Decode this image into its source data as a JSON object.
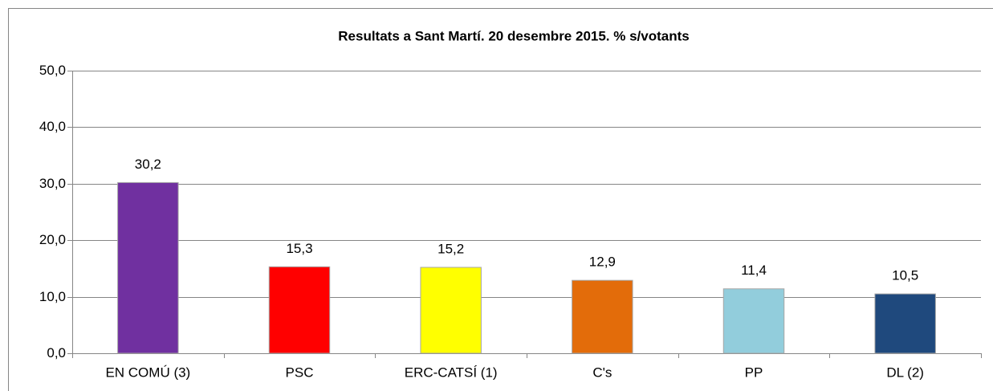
{
  "chart_data": {
    "type": "bar",
    "title": "Resultats a Sant Martí. 20 desembre 2015. % s/votants",
    "categories": [
      "EN COMÚ (3)",
      "PSC",
      "ERC-CATSÍ (1)",
      "C's",
      "PP",
      "DL (2)"
    ],
    "values": [
      30.2,
      15.3,
      15.2,
      12.9,
      11.4,
      10.5
    ],
    "value_labels": [
      "30,2",
      "15,3",
      "15,2",
      "12,9",
      "11,4",
      "10,5"
    ],
    "colors": [
      "#7030a0",
      "#ff0000",
      "#ffff00",
      "#e36c0a",
      "#92cddc",
      "#1f497d"
    ],
    "ylim": [
      0,
      50
    ],
    "yticks": [
      {
        "value": 0,
        "label": "0,0"
      },
      {
        "value": 10,
        "label": "10,0"
      },
      {
        "value": 20,
        "label": "20,0"
      },
      {
        "value": 30,
        "label": "30,0"
      },
      {
        "value": 40,
        "label": "40,0"
      },
      {
        "value": 50,
        "label": "50,0"
      }
    ],
    "grid": true
  }
}
